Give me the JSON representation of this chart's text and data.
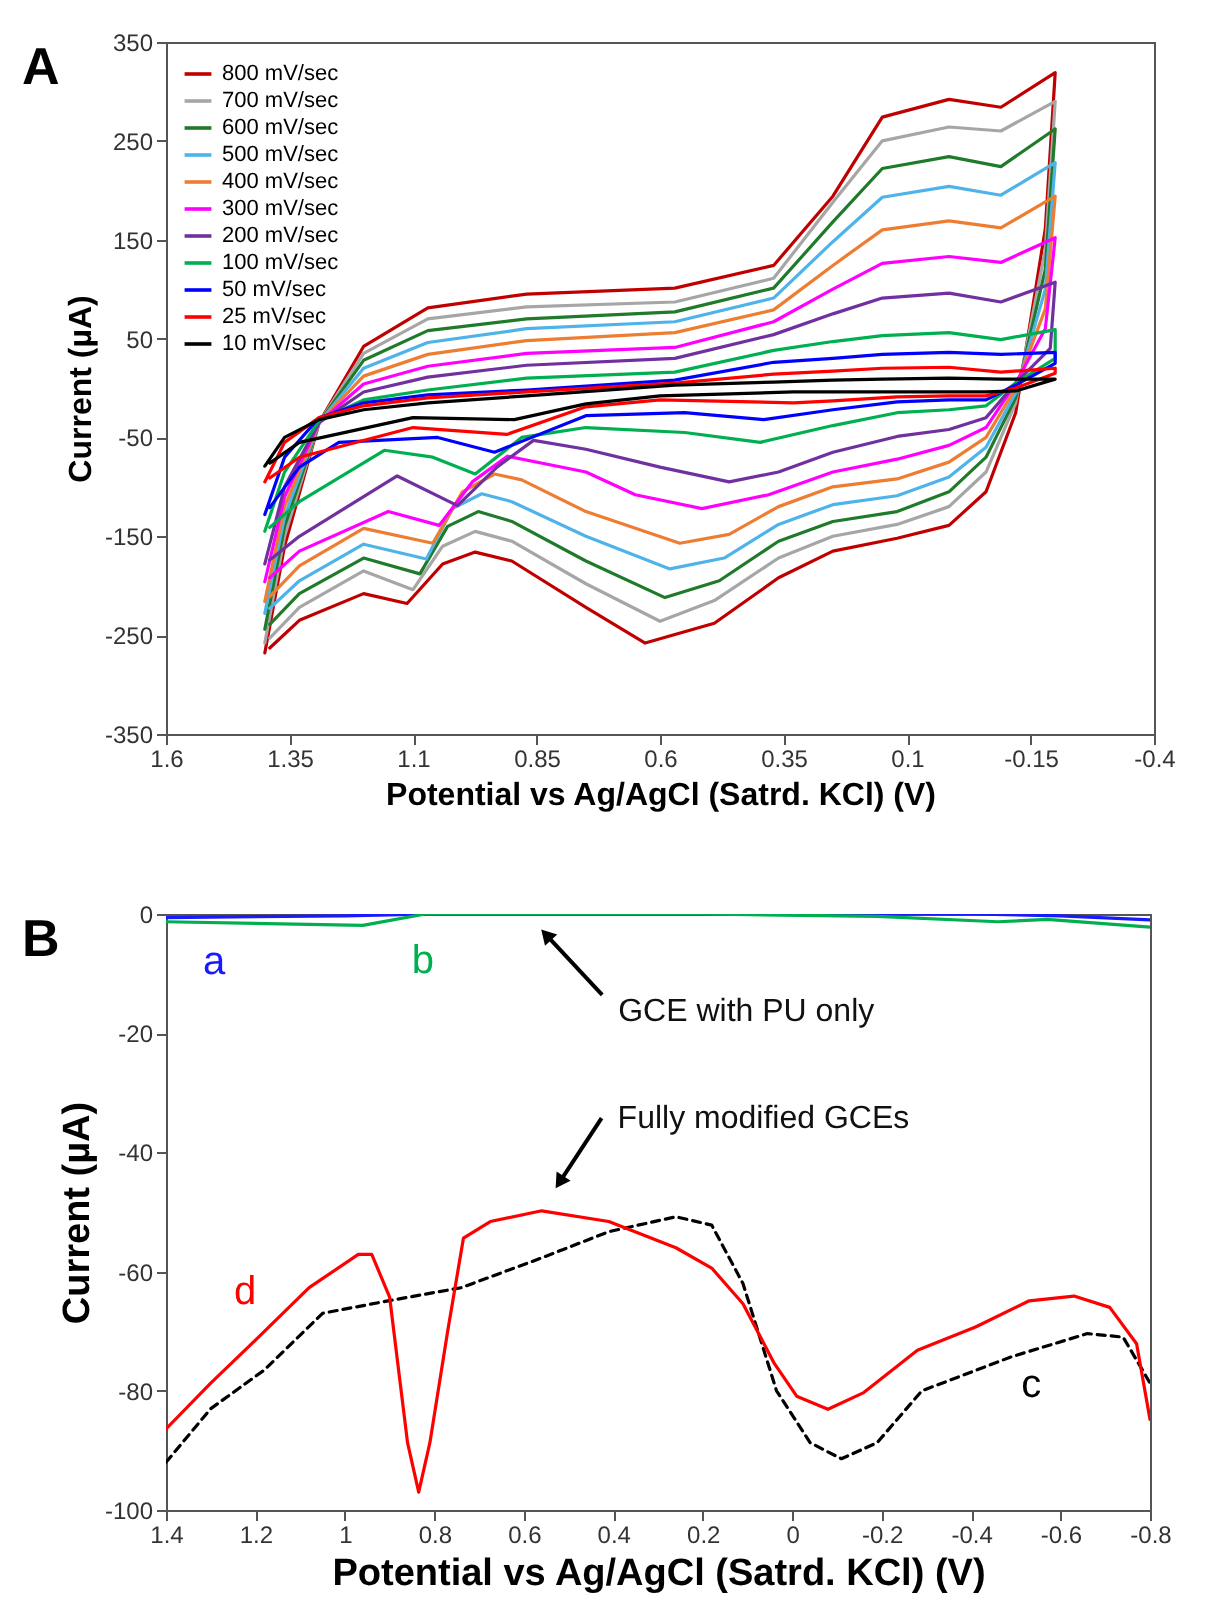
{
  "chart_data": [
    {
      "type": "line",
      "xlabel": "Potential vs Ag/AgCl (Satrd. KCl)  (V)",
      "ylabel": "Current (µA)",
      "xlim": [
        1.6,
        -0.4
      ],
      "xticks": [
        1.6,
        1.35,
        1.1,
        0.85,
        0.6,
        0.35,
        0.1,
        -0.15,
        -0.4
      ],
      "ylim": [
        -350,
        350
      ],
      "yticks": [
        -350,
        -250,
        -150,
        -50,
        50,
        150,
        250,
        350
      ],
      "legend": "top left",
      "annotations": [
        "A"
      ],
      "series": [
        {
          "name": "800 mV/sec",
          "color": "#c00000",
          "x": [
            1.4,
            1.36,
            1.29,
            1.2,
            1.07,
            0.87,
            0.57,
            0.37,
            0.25,
            0.15,
            0.015,
            -0.09,
            -0.2,
            -0.18,
            -0.12,
            -0.06,
            0.015,
            0.12,
            0.25,
            0.36,
            0.49,
            0.63,
            0.75,
            0.9,
            0.974,
            1.04,
            1.112,
            1.2,
            1.33,
            1.39
          ],
          "values": [
            -268,
            -160,
            -35,
            42,
            81,
            95,
            101,
            124,
            194,
            274,
            292,
            284,
            319,
            161,
            -25,
            -105,
            -139,
            -152,
            -165,
            -192,
            -238,
            -258,
            -222,
            -175,
            -166,
            -178,
            -218,
            -208,
            -235,
            -263
          ]
        },
        {
          "name": "700 mV/sec",
          "color": "#a6a6a6",
          "x": [
            1.4,
            1.36,
            1.29,
            1.2,
            1.07,
            0.87,
            0.57,
            0.37,
            0.25,
            0.15,
            0.015,
            -0.09,
            -0.2,
            -0.18,
            -0.12,
            -0.06,
            0.015,
            0.12,
            0.25,
            0.36,
            0.49,
            0.6,
            0.75,
            0.9,
            0.974,
            1.04,
            1.1,
            1.2,
            1.33,
            1.39
          ],
          "values": [
            -258,
            -150,
            -35,
            35,
            70,
            82,
            87,
            111,
            188,
            250,
            264,
            260,
            290,
            140,
            -15,
            -85,
            -120,
            -138,
            -150,
            -172,
            -215,
            -236,
            -198,
            -155,
            -145,
            -160,
            -204,
            -185,
            -222,
            -253
          ]
        },
        {
          "name": "600 mV/sec",
          "color": "#1f7a2a",
          "x": [
            1.4,
            1.36,
            1.29,
            1.2,
            1.07,
            0.87,
            0.57,
            0.37,
            0.25,
            0.15,
            0.015,
            -0.09,
            -0.2,
            -0.18,
            -0.12,
            -0.06,
            0.015,
            0.12,
            0.25,
            0.36,
            0.48,
            0.59,
            0.75,
            0.9,
            0.968,
            1.03,
            1.086,
            1.2,
            1.33,
            1.39
          ],
          "values": [
            -244,
            -140,
            -35,
            28,
            58,
            70,
            77,
            101,
            168,
            222,
            234,
            224,
            262,
            120,
            -10,
            -70,
            -105,
            -125,
            -135,
            -155,
            -195,
            -212,
            -175,
            -135,
            -125,
            -140,
            -188,
            -172,
            -208,
            -239
          ]
        },
        {
          "name": "500 mV/sec",
          "color": "#4eb3e8",
          "x": [
            1.4,
            1.36,
            1.29,
            1.2,
            1.07,
            0.87,
            0.57,
            0.37,
            0.25,
            0.15,
            0.015,
            -0.09,
            -0.2,
            -0.18,
            -0.12,
            -0.06,
            0.015,
            0.12,
            0.25,
            0.36,
            0.47,
            0.58,
            0.75,
            0.9,
            0.961,
            1.02,
            1.073,
            1.2,
            1.33,
            1.39
          ],
          "values": [
            -228,
            -130,
            -35,
            20,
            46,
            60,
            67,
            91,
            148,
            193,
            204,
            195,
            228,
            100,
            -5,
            -60,
            -90,
            -109,
            -118,
            -138,
            -172,
            -183,
            -150,
            -115,
            -107,
            -122,
            -173,
            -158,
            -195,
            -223
          ]
        },
        {
          "name": "400 mV/sec",
          "color": "#ed7d31",
          "x": [
            1.4,
            1.36,
            1.29,
            1.2,
            1.07,
            0.87,
            0.57,
            0.37,
            0.25,
            0.15,
            0.015,
            -0.09,
            -0.2,
            -0.18,
            -0.12,
            -0.06,
            0.015,
            0.12,
            0.25,
            0.36,
            0.46,
            0.56,
            0.75,
            0.88,
            0.935,
            1.0,
            1.06,
            1.2,
            1.33,
            1.39
          ],
          "values": [
            -216,
            -120,
            -35,
            12,
            34,
            48,
            56,
            79,
            124,
            160,
            169,
            162,
            194,
            80,
            0,
            -50,
            -75,
            -92,
            -100,
            -120,
            -148,
            -157,
            -125,
            -93,
            -87,
            -105,
            -157,
            -142,
            -180,
            -211
          ]
        },
        {
          "name": "300 mV/sec",
          "color": "#ff00ff",
          "x": [
            1.4,
            1.36,
            1.29,
            1.2,
            1.07,
            0.87,
            0.57,
            0.37,
            0.25,
            0.15,
            0.015,
            -0.09,
            -0.2,
            -0.18,
            -0.12,
            -0.06,
            0.015,
            0.12,
            0.25,
            0.38,
            0.515,
            0.65,
            0.75,
            0.909,
            0.98,
            1.047,
            1.15,
            1.33,
            1.39
          ],
          "values": [
            -196,
            -110,
            -35,
            4,
            22,
            35,
            41,
            67,
            100,
            126,
            133,
            127,
            152,
            60,
            5,
            -40,
            -58,
            -72,
            -85,
            -108,
            -122,
            -108,
            -85,
            -69,
            -95,
            -139,
            -125,
            -165,
            -192
          ]
        },
        {
          "name": "200 mV/sec",
          "color": "#7030a0",
          "x": [
            1.4,
            1.36,
            1.29,
            1.2,
            1.07,
            0.87,
            0.57,
            0.37,
            0.25,
            0.15,
            0.015,
            -0.09,
            -0.2,
            -0.19,
            -0.12,
            -0.06,
            0.015,
            0.12,
            0.25,
            0.36,
            0.46,
            0.6,
            0.75,
            0.856,
            0.93,
            1.01,
            1.132,
            1.33,
            1.39
          ],
          "values": [
            -178,
            -100,
            -35,
            -4,
            11,
            23,
            30,
            54,
            75,
            91,
            96,
            87,
            107,
            40,
            5,
            -30,
            -42,
            -49,
            -65,
            -85,
            -95,
            -80,
            -62,
            -53,
            -80,
            -119,
            -89,
            -150,
            -174
          ]
        },
        {
          "name": "100 mV/sec",
          "color": "#00b050",
          "x": [
            1.4,
            1.36,
            1.29,
            1.2,
            1.07,
            0.87,
            0.57,
            0.37,
            0.25,
            0.15,
            0.015,
            -0.09,
            -0.2,
            -0.2,
            -0.12,
            -0.06,
            0.015,
            0.12,
            0.25,
            0.397,
            0.55,
            0.75,
            0.88,
            0.974,
            1.06,
            1.158,
            1.33,
            1.39
          ],
          "values": [
            -145,
            -85,
            -33,
            -12,
            -2,
            10,
            16,
            38,
            47,
            53,
            56,
            49,
            59,
            30,
            5,
            -18,
            -22,
            -25,
            -38,
            -55,
            -45,
            -40,
            -50,
            -87,
            -70,
            -63,
            -115,
            -141
          ]
        },
        {
          "name": "50 mV/sec",
          "color": "#0000ff",
          "x": [
            1.4,
            1.36,
            1.29,
            1.2,
            1.07,
            0.87,
            0.57,
            0.37,
            0.25,
            0.15,
            0.015,
            -0.09,
            -0.2,
            -0.2,
            -0.12,
            -0.06,
            0.015,
            0.12,
            0.25,
            0.39,
            0.55,
            0.75,
            0.935,
            1.05,
            1.25,
            1.33,
            1.39
          ],
          "values": [
            -128,
            -70,
            -30,
            -15,
            -7,
            -2,
            8,
            26,
            30,
            34,
            36,
            34,
            36,
            25,
            3,
            -12,
            -12,
            -14,
            -22,
            -32,
            -25,
            -28,
            -65,
            -50,
            -55,
            -80,
            -121
          ]
        },
        {
          "name": "25 mV/sec",
          "color": "#ff0000",
          "x": [
            1.4,
            1.36,
            1.29,
            1.2,
            1.07,
            0.87,
            0.57,
            0.37,
            0.25,
            0.15,
            0.015,
            -0.09,
            -0.2,
            -0.2,
            -0.12,
            -0.06,
            0.015,
            0.12,
            0.25,
            0.33,
            0.6,
            0.75,
            0.91,
            1.1,
            1.33,
            1.39
          ],
          "values": [
            -95,
            -55,
            -30,
            -18,
            -10,
            -4,
            5,
            14,
            17,
            20,
            21,
            16,
            20,
            15,
            0,
            -8,
            -8,
            -9,
            -13,
            -15,
            -12,
            -19,
            -47,
            -40,
            -70,
            -91
          ]
        },
        {
          "name": "10 mV/sec",
          "color": "#000000",
          "x": [
            1.4,
            1.36,
            1.29,
            1.2,
            1.07,
            0.87,
            0.57,
            0.37,
            0.25,
            0.15,
            0.015,
            -0.09,
            -0.2,
            -0.2,
            -0.12,
            -0.06,
            0.015,
            0.12,
            0.25,
            0.33,
            0.6,
            0.75,
            0.895,
            1.1,
            1.33,
            1.39
          ],
          "values": [
            -79,
            -50,
            -32,
            -22,
            -15,
            -8,
            3,
            6,
            8,
            9,
            10,
            9,
            9,
            9,
            -3,
            -4,
            -4,
            -4,
            -4,
            -4,
            -8,
            -16,
            -32,
            -30,
            -55,
            -76
          ]
        }
      ]
    },
    {
      "type": "line",
      "xlabel": "Potential vs Ag/AgCl (Satrd. KCl) (V)",
      "ylabel": "Current (µA)",
      "xlim": [
        1.4,
        -0.8
      ],
      "xticks": [
        1.4,
        1.2,
        1,
        0.8,
        0.6,
        0.4,
        0.2,
        0,
        -0.2,
        -0.4,
        -0.6,
        -0.8
      ],
      "ylim": [
        -100,
        0
      ],
      "yticks": [
        -100,
        -80,
        -60,
        -40,
        -20,
        0
      ],
      "annotations": [
        "B",
        {
          "text": "GCE with PU only",
          "x": 0.55,
          "y": -3.5
        },
        {
          "text": "Fully modified GCEs",
          "x": 0.52,
          "y": -45
        }
      ],
      "series": [
        {
          "name": "a",
          "color": "#1a1aff",
          "x": [
            1.4,
            1.0,
            0.8,
            0.2,
            -0.4,
            -0.6,
            -0.8
          ],
          "values": [
            -0.6,
            -0.3,
            0,
            0,
            0,
            -0.3,
            -1
          ]
        },
        {
          "name": "b",
          "color": "#00b050",
          "x": [
            1.4,
            0.96,
            0.82,
            0.2,
            -0.19,
            -0.46,
            -0.57,
            -0.8
          ],
          "values": [
            -1.3,
            -1.9,
            0,
            0,
            -0.4,
            -1.3,
            -0.9,
            -2.2
          ]
        },
        {
          "name": "c",
          "color": "#000000",
          "line_style": "dashed",
          "x": [
            1.4,
            1.3,
            1.18,
            1.05,
            0.91,
            0.74,
            0.56,
            0.41,
            0.26,
            0.18,
            0.11,
            0.035,
            -0.04,
            -0.11,
            -0.19,
            -0.29,
            -0.49,
            -0.66,
            -0.74,
            -0.8
          ],
          "values": [
            -92,
            -83,
            -76.5,
            -67,
            -65,
            -62.7,
            -57.7,
            -53.3,
            -50.8,
            -52.2,
            -62,
            -80,
            -88.7,
            -91.4,
            -88.7,
            -80,
            -74.3,
            -70.4,
            -71,
            -78.7
          ]
        },
        {
          "name": "d",
          "color": "#ff0000",
          "x": [
            1.4,
            1.3,
            1.2,
            1.08,
            0.97,
            0.94,
            0.9,
            0.86,
            0.835,
            0.81,
            0.77,
            0.735,
            0.675,
            0.56,
            0.41,
            0.26,
            0.18,
            0.11,
            0.04,
            -0.01,
            -0.08,
            -0.16,
            -0.28,
            -0.41,
            -0.53,
            -0.63,
            -0.71,
            -0.77,
            -0.8
          ],
          "values": [
            -86.4,
            -78.7,
            -71.5,
            -62.7,
            -57.1,
            -57.1,
            -64.3,
            -88.7,
            -97,
            -88.7,
            -69.9,
            -54.4,
            -51.6,
            -49.8,
            -51.6,
            -56,
            -59.4,
            -65.4,
            -75.4,
            -80.9,
            -83.1,
            -80.3,
            -73.2,
            -69.3,
            -64.9,
            -64.1,
            -66,
            -72.1,
            -84.8
          ]
        }
      ]
    }
  ]
}
